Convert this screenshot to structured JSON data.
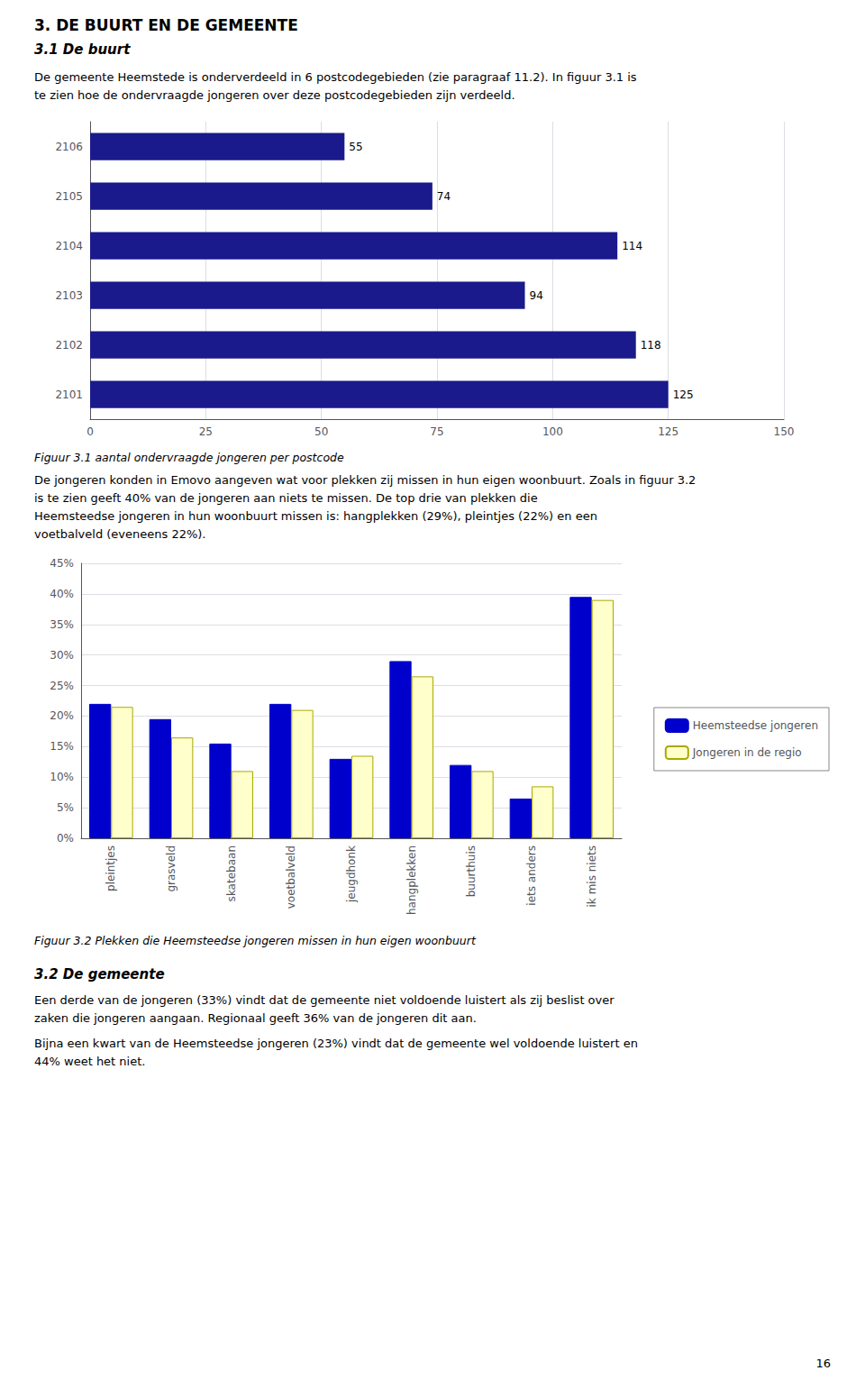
{
  "chart_data": [
    {
      "type": "bar",
      "orientation": "horizontal",
      "title": "Figuur 3.1 aantal ondervraagde jongeren per postcode",
      "annotations": [
        "3. DE BUURT EN DE GEMEENTE",
        "3.1 De buurt",
        "De gemeente Heemstede is onderverdeeld in 6 postcodegebieden (zie paragraaf 11.2). In figuur 3.1 is",
        "te zien hoe de ondervraagde jongeren over deze postcodegebieden zijn verdeeld."
      ],
      "categories": [
        "2101",
        "2102",
        "2103",
        "2104",
        "2105",
        "2106"
      ],
      "values": [
        125,
        118,
        94,
        114,
        74,
        55
      ],
      "color": "#1a1a8c",
      "xlim": [
        0,
        150
      ],
      "xticks": [
        0,
        25,
        50,
        75,
        100,
        125,
        150
      ],
      "grid": true,
      "data_labels": true
    },
    {
      "type": "bar",
      "title": "Figuur 3.2 Plekken die Heemsteedse jongeren missen in hun eigen woonbuurt",
      "annotations": [
        "De jongeren konden in Emovo aangeven wat voor plekken zij missen in hun eigen woonbuurt. Zoals in figuur 3.2",
        "is te zien geeft 40% van de jongeren aan niets te missen. De top drie van plekken die",
        "Heemsteedse jongeren in hun woonbuurt missen is: hangplekken (29%), pleintjes (22%) en een",
        "voetbalveld (eveneens 22%).",
        "3.2 De gemeente",
        "Een derde van de jongeren (33%) vindt dat de gemeente niet voldoende luistert als zij beslist over",
        "zaken die jongeren aangaan. Regionaal geeft 36% van de jongeren dit aan.",
        "Bijna een kwart van de Heemsteedse jongeren (23%) vindt dat de gemeente wel voldoende luistert en",
        "44% weet het niet.",
        "16"
      ],
      "categories": [
        "pleintjes",
        "grasveld",
        "skatebaan",
        "voetbalveld",
        "jeugdhonk",
        "hangplekken",
        "buurthuis",
        "iets anders",
        "ik mis niets"
      ],
      "series": [
        {
          "name": "Heemsteedse jongeren",
          "color": "#0000cc",
          "values": [
            0.22,
            0.195,
            0.155,
            0.22,
            0.13,
            0.29,
            0.12,
            0.065,
            0.395
          ]
        },
        {
          "name": "Jongeren in de regio",
          "color": "#ffffcc",
          "values": [
            0.215,
            0.165,
            0.11,
            0.21,
            0.135,
            0.265,
            0.11,
            0.085,
            0.39
          ]
        }
      ],
      "ylim": [
        0,
        0.45
      ],
      "yticks": [
        {
          "value": 0,
          "label": "0%"
        },
        {
          "value": 0.05,
          "label": "5%"
        },
        {
          "value": 0.1,
          "label": "10%"
        },
        {
          "value": 0.15,
          "label": "15%"
        },
        {
          "value": 0.2,
          "label": "20%"
        },
        {
          "value": 0.25,
          "label": "25%"
        },
        {
          "value": 0.3,
          "label": "30%"
        },
        {
          "value": 0.35,
          "label": "35%"
        },
        {
          "value": 0.4,
          "label": "40%"
        },
        {
          "value": 0.45,
          "label": "45%"
        }
      ],
      "grid": true,
      "legend": "right"
    }
  ]
}
